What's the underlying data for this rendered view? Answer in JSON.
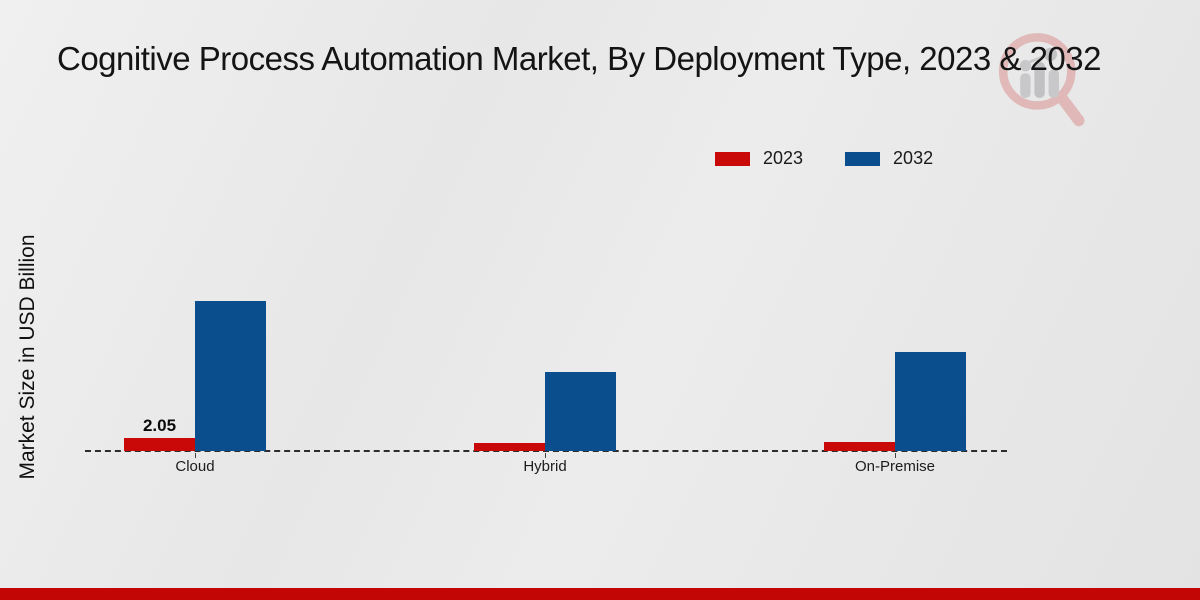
{
  "title": "Cognitive Process Automation Market, By Deployment Type, 2023 & 2032",
  "watermark_icon": "magnifier-bar-chart-logo",
  "colors": {
    "series_2023": "#c90808",
    "series_2032": "#0a4e8e",
    "footer_stripe": "#c20606",
    "background": "#e8e8e8",
    "baseline": "#2d2d2d"
  },
  "chart_data": {
    "type": "bar",
    "title": "Cognitive Process Automation Market, By Deployment Type, 2023 & 2032",
    "xlabel": "",
    "ylabel": "Market Size in USD Billion",
    "categories": [
      "Cloud",
      "Hybrid",
      "On-Premise"
    ],
    "series": [
      {
        "name": "2023",
        "color": "#c90808",
        "values": [
          2.05,
          1.2,
          1.4
        ]
      },
      {
        "name": "2032",
        "color": "#0a4e8e",
        "values": [
          23.7,
          12.5,
          15.6
        ]
      }
    ],
    "data_labels": [
      {
        "series_index": 0,
        "category_index": 0,
        "text": "2.05"
      }
    ],
    "ylim": [
      0,
      25
    ],
    "grid": false,
    "baseline_style": "dashed",
    "legend_position": "top-right",
    "legend": [
      "2023",
      "2032"
    ]
  }
}
